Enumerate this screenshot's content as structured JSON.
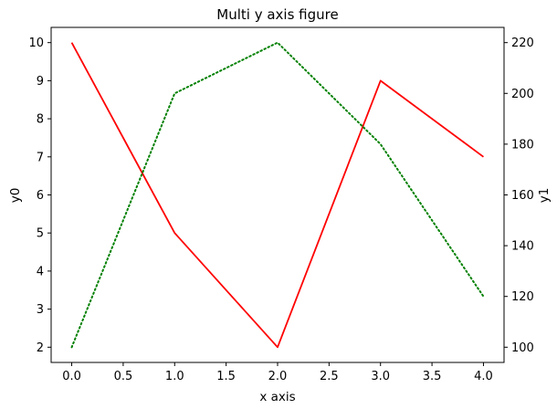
{
  "chart_data": {
    "type": "line",
    "title": "Multi y axis figure",
    "xlabel": "x axis",
    "x": [
      0,
      1,
      2,
      3,
      4
    ],
    "xlim": [
      -0.2,
      4.2
    ],
    "xticks": [
      0.0,
      0.5,
      1.0,
      1.5,
      2.0,
      2.5,
      3.0,
      3.5,
      4.0
    ],
    "xtick_labels": [
      "0.0",
      "0.5",
      "1.0",
      "1.5",
      "2.0",
      "2.5",
      "3.0",
      "3.5",
      "4.0"
    ],
    "axes": [
      {
        "side": "left",
        "label": "y0",
        "ylim": [
          1.6,
          10.4
        ],
        "ticks": [
          2,
          3,
          4,
          5,
          6,
          7,
          8,
          9,
          10
        ],
        "tick_labels": [
          "2",
          "3",
          "4",
          "5",
          "6",
          "7",
          "8",
          "9",
          "10"
        ]
      },
      {
        "side": "right",
        "label": "y1",
        "ylim": [
          94,
          226
        ],
        "ticks": [
          100,
          120,
          140,
          160,
          180,
          200,
          220
        ],
        "tick_labels": [
          "100",
          "120",
          "140",
          "160",
          "180",
          "200",
          "220"
        ]
      }
    ],
    "series": [
      {
        "axis": "left",
        "color": "#ff0000",
        "linestyle": "solid",
        "values": [
          10,
          5,
          2,
          9,
          7
        ]
      },
      {
        "axis": "right",
        "color": "#008000",
        "linestyle": "dotted",
        "values": [
          100,
          200,
          220,
          180,
          120
        ]
      }
    ],
    "grid": false,
    "legend": "none"
  }
}
